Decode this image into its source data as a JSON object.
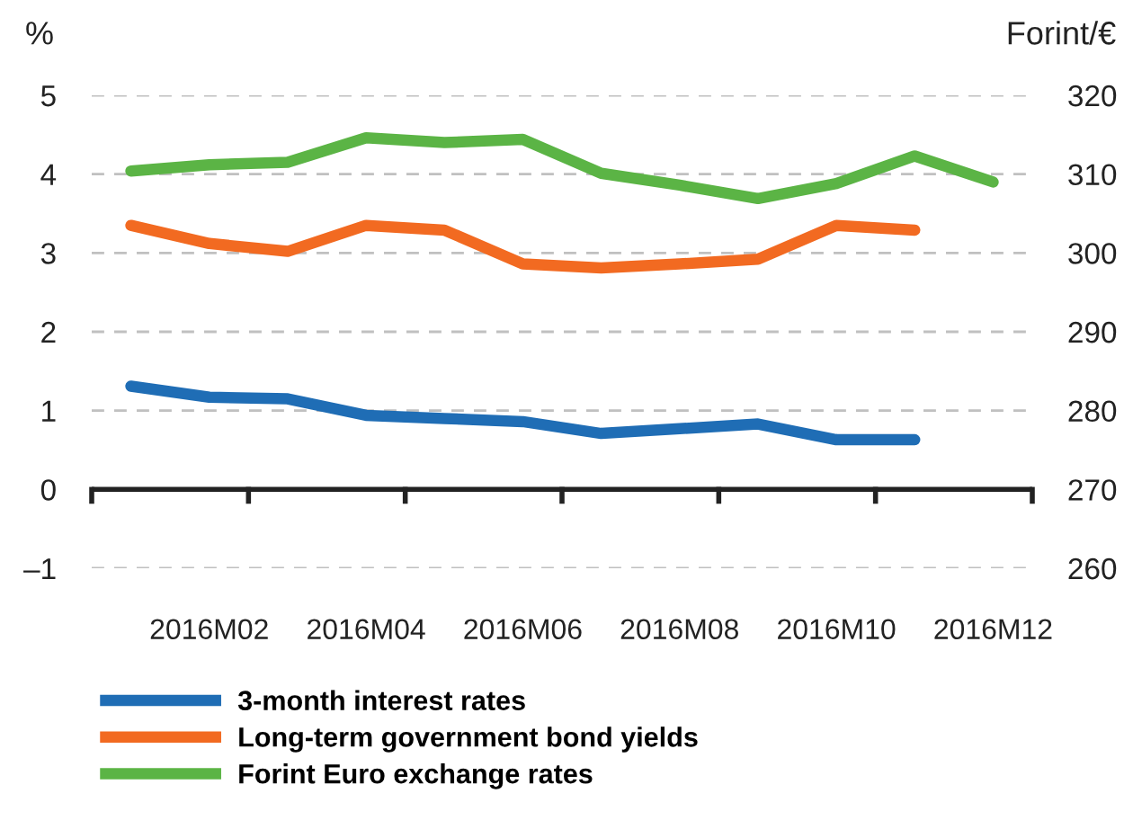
{
  "chart_data": {
    "type": "line",
    "categories": [
      null,
      "2016M02",
      null,
      "2016M04",
      null,
      "2016M06",
      null,
      "2016M08",
      null,
      "2016M10",
      null,
      "2016M12"
    ],
    "ylabel": "%",
    "y2label": "Forint/€",
    "ylim": [
      -1,
      5
    ],
    "yticks": [
      {
        "value": -1,
        "label": "–1"
      },
      0,
      1,
      2,
      3,
      4,
      5
    ],
    "y2lim": [
      260,
      320
    ],
    "y2ticks": [
      260,
      270,
      280,
      290,
      300,
      310,
      320
    ],
    "grid": "y",
    "legend": "bottom",
    "line_style": "solid",
    "marker": "none",
    "series": [
      {
        "name": "3-month interest rates",
        "color": "#1f6db5",
        "values": [
          1.31,
          1.17,
          1.15,
          0.94,
          0.9,
          0.86,
          0.71,
          0.77,
          0.83,
          0.63,
          0.63,
          null
        ]
      },
      {
        "name": "Long-term government bond yields",
        "color": "#f26a21",
        "values": [
          3.35,
          3.12,
          3.02,
          3.35,
          3.29,
          2.86,
          2.81,
          2.86,
          2.92,
          3.35,
          3.29,
          null
        ]
      },
      {
        "name": "Forint Euro exchange rates",
        "color": "#5bb445",
        "axis": "y2",
        "values": [
          310.4,
          311.2,
          311.5,
          314.6,
          314.0,
          314.4,
          310.1,
          308.6,
          306.9,
          308.8,
          312.3,
          309.0
        ]
      }
    ]
  }
}
